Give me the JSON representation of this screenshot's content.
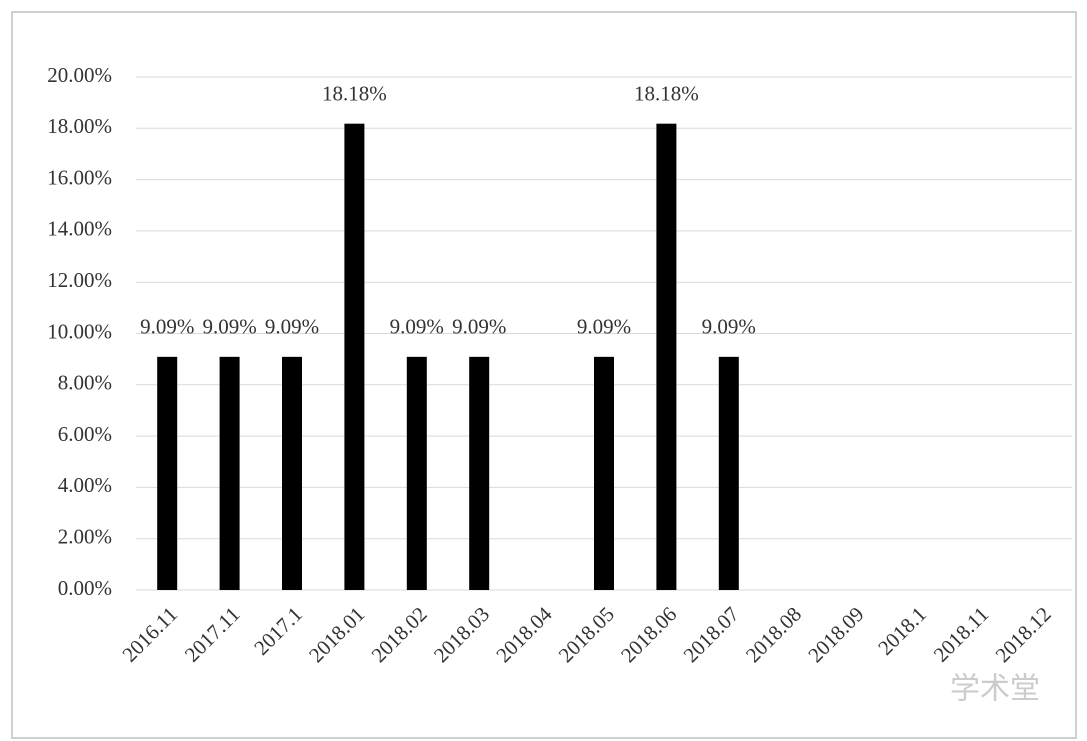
{
  "chart_data": {
    "type": "bar",
    "categories": [
      "2016.11",
      "2017.11",
      "2017.1",
      "2018.01",
      "2018.02",
      "2018.03",
      "2018.04",
      "2018.05",
      "2018.06",
      "2018.07",
      "2018.08",
      "2018.09",
      "2018.1",
      "2018.11",
      "2018.12"
    ],
    "values": [
      9.09,
      9.09,
      9.09,
      18.18,
      9.09,
      9.09,
      null,
      9.09,
      18.18,
      9.09,
      null,
      null,
      null,
      null,
      null
    ],
    "value_labels": [
      "9.09%",
      "9.09%",
      "9.09%",
      "18.18%",
      "9.09%",
      "9.09%",
      null,
      "9.09%",
      "18.18%",
      "9.09%",
      null,
      null,
      null,
      null,
      null
    ],
    "color": "#000000",
    "ylim": [
      0,
      20
    ],
    "yticks": [
      {
        "value": 0,
        "label": "0.00%"
      },
      {
        "value": 2,
        "label": "2.00%"
      },
      {
        "value": 4,
        "label": "4.00%"
      },
      {
        "value": 6,
        "label": "6.00%"
      },
      {
        "value": 8,
        "label": "8.00%"
      },
      {
        "value": 10,
        "label": "10.00%"
      },
      {
        "value": 12,
        "label": "12.00%"
      },
      {
        "value": 14,
        "label": "14.00%"
      },
      {
        "value": 16,
        "label": "16.00%"
      },
      {
        "value": 18,
        "label": "18.00%"
      },
      {
        "value": 20,
        "label": "20.00%"
      }
    ],
    "grid": true,
    "watermark": "学术堂"
  }
}
